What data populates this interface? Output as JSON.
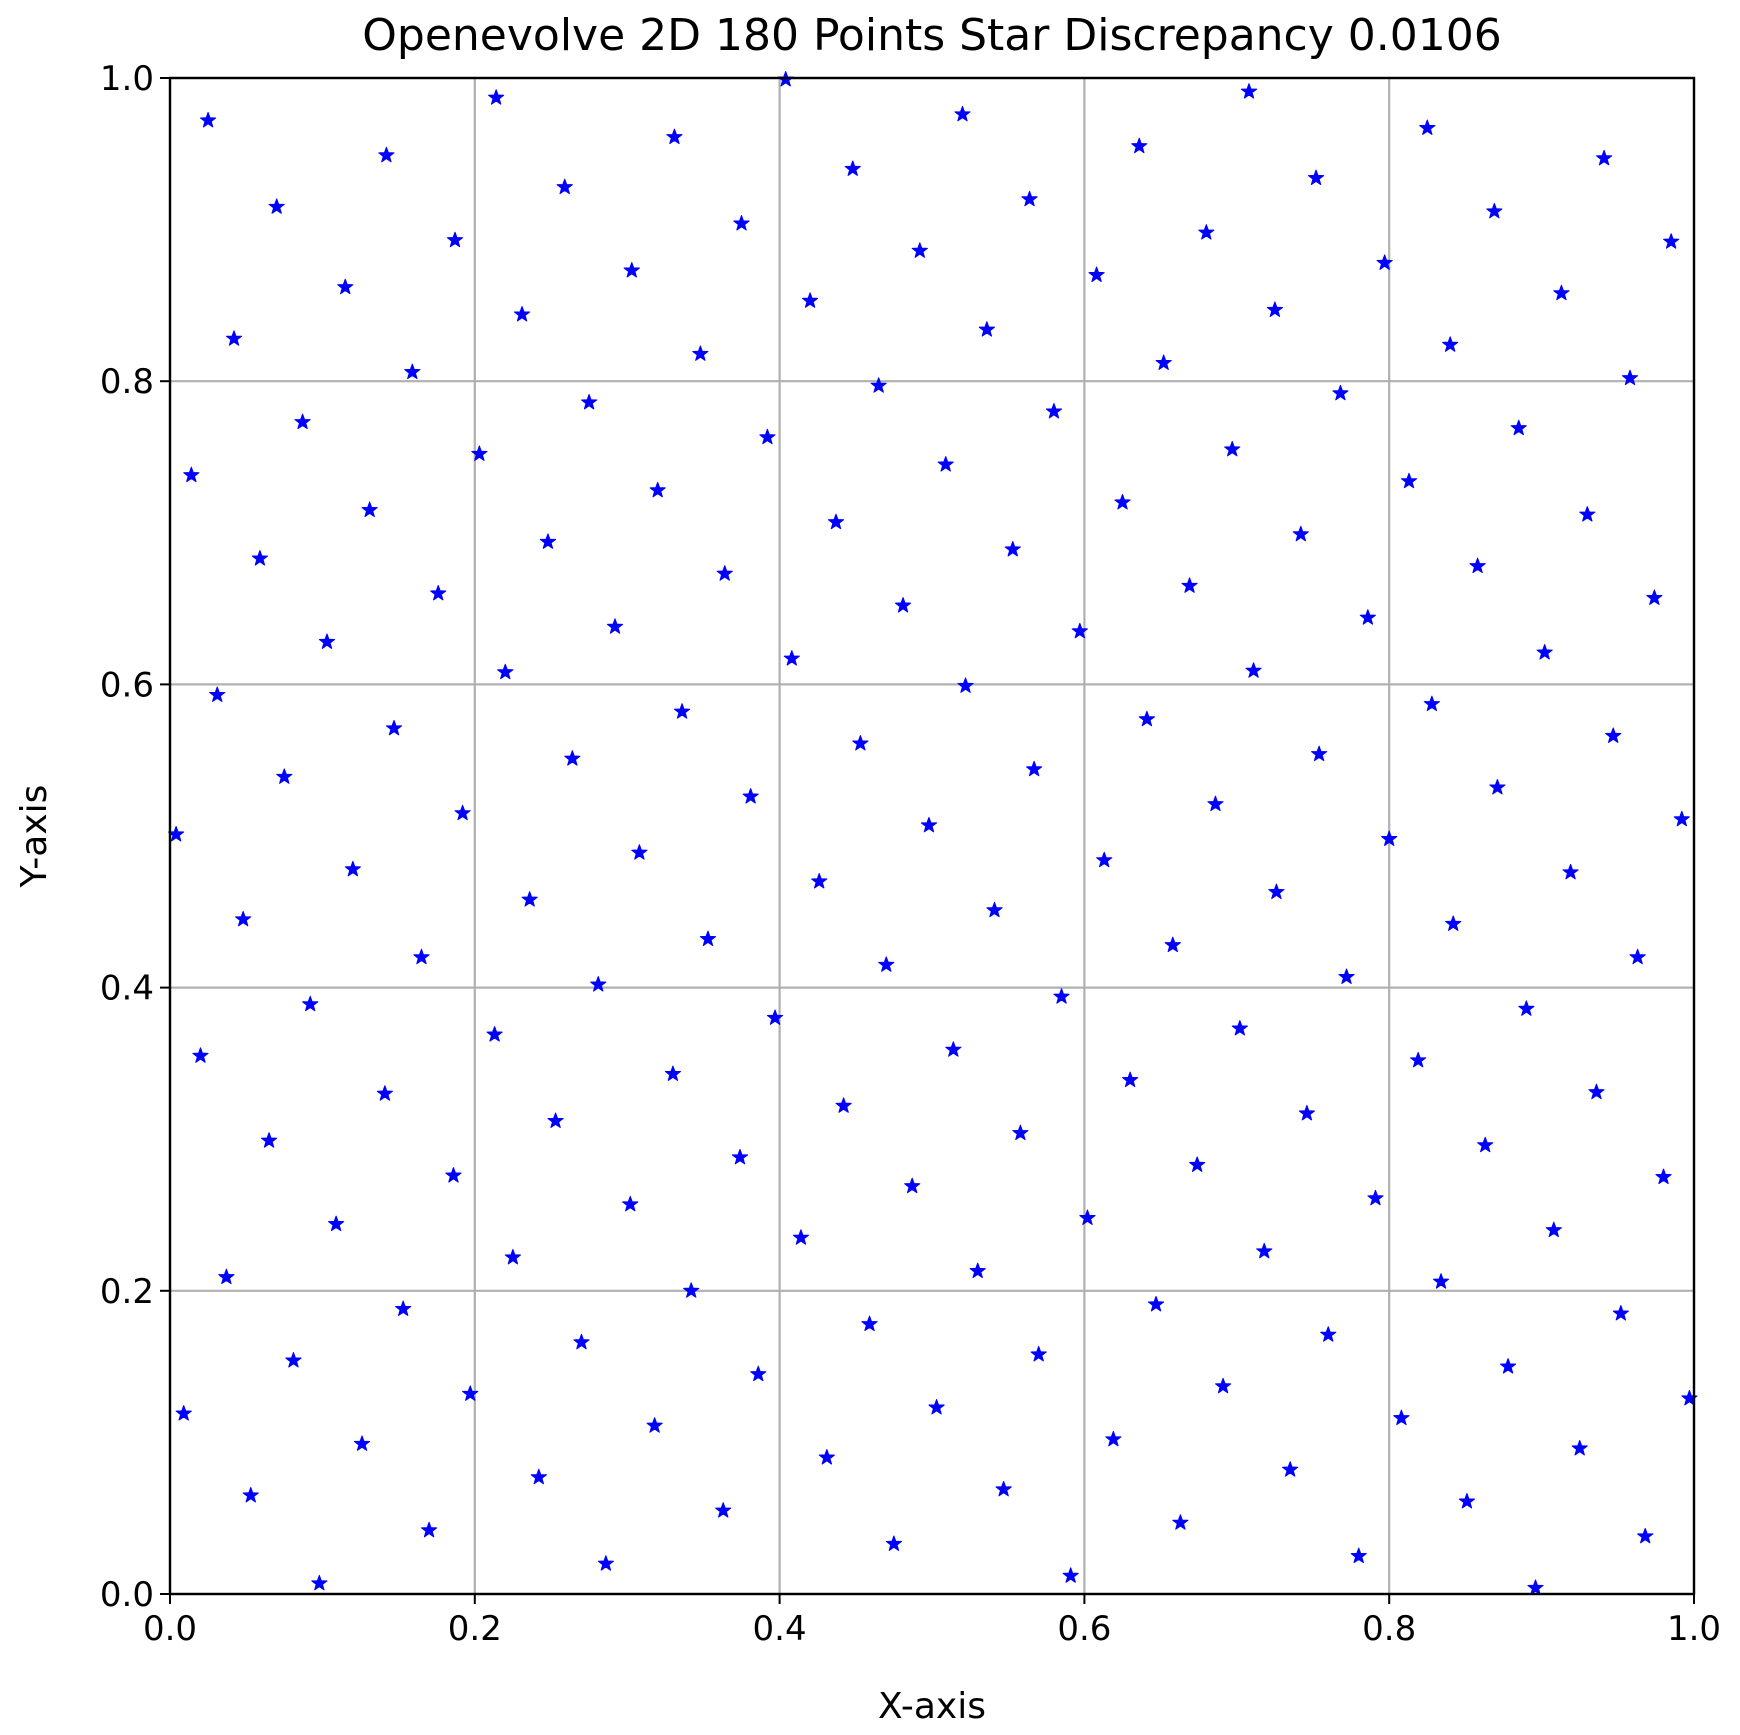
{
  "chart_data": {
    "type": "scatter",
    "title": "Openevolve 2D 180 Points Star Discrepancy 0.0106",
    "xlabel": "X-axis",
    "ylabel": "Y-axis",
    "xlim": [
      0,
      1
    ],
    "ylim": [
      0,
      1
    ],
    "xticks": [
      "0.0",
      "0.2",
      "0.4",
      "0.6",
      "0.8",
      "1.0"
    ],
    "yticks": [
      "0.0",
      "0.2",
      "0.4",
      "0.6",
      "0.8",
      "1.0"
    ],
    "grid": true,
    "marker": "star",
    "marker_color": "#0000ff",
    "series": [
      {
        "points": [
          [
            0.004,
            0.501
          ],
          [
            0.009,
            0.119
          ],
          [
            0.014,
            0.738
          ],
          [
            0.02,
            0.355
          ],
          [
            0.025,
            0.972
          ],
          [
            0.031,
            0.593
          ],
          [
            0.037,
            0.209
          ],
          [
            0.042,
            0.828
          ],
          [
            0.048,
            0.445
          ],
          [
            0.053,
            0.065
          ],
          [
            0.059,
            0.683
          ],
          [
            0.065,
            0.299
          ],
          [
            0.07,
            0.915
          ],
          [
            0.075,
            0.539
          ],
          [
            0.081,
            0.154
          ],
          [
            0.087,
            0.773
          ],
          [
            0.092,
            0.389
          ],
          [
            0.098,
            0.007
          ],
          [
            0.103,
            0.628
          ],
          [
            0.109,
            0.244
          ],
          [
            0.115,
            0.862
          ],
          [
            0.12,
            0.478
          ],
          [
            0.126,
            0.099
          ],
          [
            0.131,
            0.715
          ],
          [
            0.141,
            0.33
          ],
          [
            0.142,
            0.949
          ],
          [
            0.147,
            0.571
          ],
          [
            0.153,
            0.188
          ],
          [
            0.159,
            0.806
          ],
          [
            0.165,
            0.42
          ],
          [
            0.17,
            0.042
          ],
          [
            0.176,
            0.66
          ],
          [
            0.186,
            0.276
          ],
          [
            0.187,
            0.893
          ],
          [
            0.192,
            0.515
          ],
          [
            0.197,
            0.132
          ],
          [
            0.203,
            0.752
          ],
          [
            0.213,
            0.369
          ],
          [
            0.214,
            0.987
          ],
          [
            0.22,
            0.608
          ],
          [
            0.225,
            0.222
          ],
          [
            0.231,
            0.844
          ],
          [
            0.236,
            0.458
          ],
          [
            0.242,
            0.077
          ],
          [
            0.248,
            0.694
          ],
          [
            0.253,
            0.312
          ],
          [
            0.259,
            0.928
          ],
          [
            0.264,
            0.551
          ],
          [
            0.27,
            0.166
          ],
          [
            0.275,
            0.786
          ],
          [
            0.281,
            0.402
          ],
          [
            0.286,
            0.02
          ],
          [
            0.292,
            0.638
          ],
          [
            0.302,
            0.257
          ],
          [
            0.303,
            0.873
          ],
          [
            0.308,
            0.489
          ],
          [
            0.318,
            0.111
          ],
          [
            0.32,
            0.728
          ],
          [
            0.33,
            0.343
          ],
          [
            0.331,
            0.961
          ],
          [
            0.336,
            0.582
          ],
          [
            0.342,
            0.2
          ],
          [
            0.348,
            0.818
          ],
          [
            0.353,
            0.432
          ],
          [
            0.363,
            0.055
          ],
          [
            0.364,
            0.673
          ],
          [
            0.374,
            0.288
          ],
          [
            0.375,
            0.904
          ],
          [
            0.381,
            0.526
          ],
          [
            0.386,
            0.145
          ],
          [
            0.392,
            0.763
          ],
          [
            0.397,
            0.38
          ],
          [
            0.404,
            0.999
          ],
          [
            0.408,
            0.617
          ],
          [
            0.414,
            0.235
          ],
          [
            0.42,
            0.853
          ],
          [
            0.426,
            0.47
          ],
          [
            0.431,
            0.09
          ],
          [
            0.437,
            0.707
          ],
          [
            0.442,
            0.322
          ],
          [
            0.448,
            0.94
          ],
          [
            0.453,
            0.561
          ],
          [
            0.459,
            0.178
          ],
          [
            0.465,
            0.797
          ],
          [
            0.47,
            0.415
          ],
          [
            0.475,
            0.033
          ],
          [
            0.481,
            0.652
          ],
          [
            0.487,
            0.269
          ],
          [
            0.492,
            0.886
          ],
          [
            0.498,
            0.507
          ],
          [
            0.503,
            0.123
          ],
          [
            0.509,
            0.745
          ],
          [
            0.514,
            0.359
          ],
          [
            0.52,
            0.976
          ],
          [
            0.522,
            0.599
          ],
          [
            0.53,
            0.213
          ],
          [
            0.536,
            0.834
          ],
          [
            0.541,
            0.451
          ],
          [
            0.547,
            0.069
          ],
          [
            0.553,
            0.689
          ],
          [
            0.558,
            0.304
          ],
          [
            0.564,
            0.92
          ],
          [
            0.567,
            0.544
          ],
          [
            0.57,
            0.158
          ],
          [
            0.58,
            0.78
          ],
          [
            0.585,
            0.394
          ],
          [
            0.591,
            0.012
          ],
          [
            0.597,
            0.635
          ],
          [
            0.602,
            0.248
          ],
          [
            0.608,
            0.87
          ],
          [
            0.613,
            0.484
          ],
          [
            0.619,
            0.102
          ],
          [
            0.625,
            0.72
          ],
          [
            0.63,
            0.339
          ],
          [
            0.636,
            0.955
          ],
          [
            0.641,
            0.577
          ],
          [
            0.647,
            0.191
          ],
          [
            0.652,
            0.812
          ],
          [
            0.658,
            0.428
          ],
          [
            0.663,
            0.047
          ],
          [
            0.669,
            0.665
          ],
          [
            0.674,
            0.283
          ],
          [
            0.68,
            0.898
          ],
          [
            0.686,
            0.521
          ],
          [
            0.691,
            0.137
          ],
          [
            0.697,
            0.755
          ],
          [
            0.702,
            0.373
          ],
          [
            0.708,
            0.991
          ],
          [
            0.711,
            0.609
          ],
          [
            0.718,
            0.226
          ],
          [
            0.725,
            0.847
          ],
          [
            0.726,
            0.463
          ],
          [
            0.735,
            0.082
          ],
          [
            0.742,
            0.699
          ],
          [
            0.746,
            0.317
          ],
          [
            0.752,
            0.934
          ],
          [
            0.754,
            0.554
          ],
          [
            0.76,
            0.171
          ],
          [
            0.768,
            0.792
          ],
          [
            0.772,
            0.407
          ],
          [
            0.78,
            0.025
          ],
          [
            0.786,
            0.644
          ],
          [
            0.791,
            0.261
          ],
          [
            0.797,
            0.878
          ],
          [
            0.8,
            0.498
          ],
          [
            0.808,
            0.116
          ],
          [
            0.813,
            0.734
          ],
          [
            0.819,
            0.352
          ],
          [
            0.825,
            0.967
          ],
          [
            0.828,
            0.587
          ],
          [
            0.834,
            0.206
          ],
          [
            0.84,
            0.824
          ],
          [
            0.842,
            0.442
          ],
          [
            0.851,
            0.061
          ],
          [
            0.858,
            0.678
          ],
          [
            0.863,
            0.296
          ],
          [
            0.869,
            0.912
          ],
          [
            0.871,
            0.532
          ],
          [
            0.878,
            0.15
          ],
          [
            0.885,
            0.769
          ],
          [
            0.89,
            0.386
          ],
          [
            0.896,
            0.004
          ],
          [
            0.902,
            0.621
          ],
          [
            0.908,
            0.24
          ],
          [
            0.913,
            0.858
          ],
          [
            0.919,
            0.476
          ],
          [
            0.925,
            0.096
          ],
          [
            0.93,
            0.712
          ],
          [
            0.936,
            0.331
          ],
          [
            0.941,
            0.947
          ],
          [
            0.947,
            0.566
          ],
          [
            0.952,
            0.185
          ],
          [
            0.958,
            0.802
          ],
          [
            0.963,
            0.42
          ],
          [
            0.968,
            0.038
          ],
          [
            0.974,
            0.657
          ],
          [
            0.98,
            0.275
          ],
          [
            0.985,
            0.892
          ],
          [
            0.992,
            0.511
          ],
          [
            0.997,
            0.129
          ]
        ]
      }
    ]
  }
}
